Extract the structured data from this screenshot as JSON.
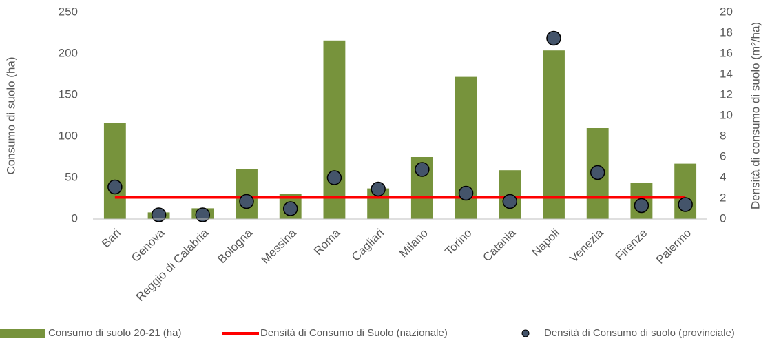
{
  "chart_data": {
    "type": "bar",
    "categories": [
      "Bari",
      "Genova",
      "Reggio di Calabria",
      "Bologna",
      "Messina",
      "Roma",
      "Cagliari",
      "Milano",
      "Torino",
      "Catania",
      "Napoli",
      "Venezia",
      "Firenze",
      "Palermo"
    ],
    "series": [
      {
        "name": "Consumo di suolo 20-21 (ha)",
        "type": "bar",
        "color": "#77933c",
        "values": [
          116,
          8,
          13,
          60,
          30,
          216,
          37,
          75,
          172,
          59,
          204,
          110,
          44,
          67
        ]
      },
      {
        "name": "Densità di Consumo di Suolo (nazionale)",
        "type": "line",
        "axis": "y2",
        "color": "#ff0000",
        "values": [
          2.1,
          2.1,
          2.1,
          2.1,
          2.1,
          2.1,
          2.1,
          2.1,
          2.1,
          2.1,
          2.1,
          2.1,
          2.1,
          2.1
        ]
      },
      {
        "name": "Densità di Consumo di suolo (provinciale)",
        "type": "scatter",
        "axis": "y2",
        "color": "#44546a",
        "values": [
          3.1,
          0.4,
          0.4,
          1.7,
          1.0,
          4.0,
          2.9,
          4.8,
          2.5,
          1.7,
          17.5,
          4.5,
          1.3,
          1.4
        ]
      }
    ],
    "ylabel": "Consumo di suolo (ha)",
    "y2label": "Densità di consumo di suolo (m²/ha)",
    "ylim": [
      0,
      250
    ],
    "yticks": [
      0,
      50,
      100,
      150,
      200,
      250
    ],
    "y2lim": [
      0,
      20
    ],
    "y2ticks": [
      0,
      2,
      4,
      6,
      8,
      10,
      12,
      14,
      16,
      18,
      20
    ],
    "grid": false,
    "legend": "bottom"
  }
}
